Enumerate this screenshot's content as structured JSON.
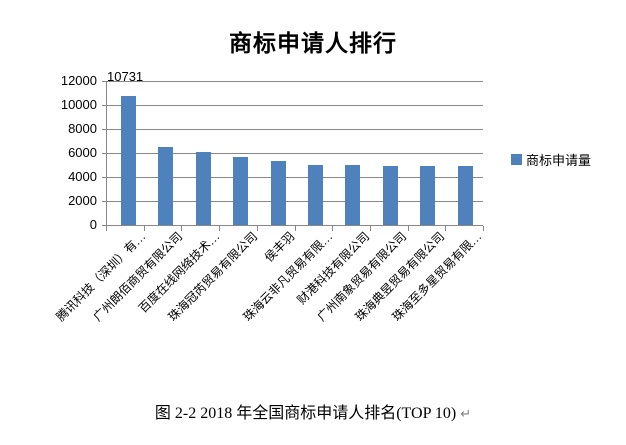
{
  "chart": {
    "title": "商标申请人排行",
    "legend": {
      "label": "商标申请量"
    }
  },
  "caption": {
    "text": "图 2-2 2018 年全国商标申请人排名(TOP 10)",
    "return_mark": "↵"
  },
  "chart_data": {
    "type": "bar",
    "title": "商标申请人排行",
    "categories": [
      "腾讯科技（深圳）有…",
      "广州朗佰商贸有限公司",
      "百度在线网络技术…",
      "珠海冠芮贸易有限公司",
      "侯丰羽",
      "珠海云非凡贸易有限…",
      "财港科技有限公司",
      "广州南象贸易有限公司",
      "珠海典昱贸易有限公司",
      "珠海至多星贸易有限…"
    ],
    "series": [
      {
        "name": "商标申请量",
        "values": [
          10731,
          6520,
          6060,
          5640,
          5360,
          4980,
          5000,
          4920,
          4920,
          4920
        ]
      }
    ],
    "data_labels": [
      {
        "index": 0,
        "text": "10731"
      }
    ],
    "ylim": [
      0,
      12000
    ],
    "yticks": [
      0,
      2000,
      4000,
      6000,
      8000,
      10000,
      12000
    ],
    "grid": true,
    "legend_position": "right",
    "bar_color": "#4F81BD",
    "gridline_color": "#878787",
    "xlabel": "",
    "ylabel": ""
  }
}
